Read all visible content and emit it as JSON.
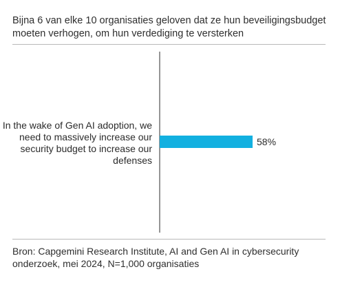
{
  "title": "Bijna 6 van elke 10 organisaties geloven dat ze hun beveiligingsbudget moeten verhogen, om hun verdediging te versterken",
  "source": "Bron: Capgemini Research Institute, AI and Gen AI in cybersecurity onderzoek, mei 2024, N=1,000 organisaties",
  "chart_data": {
    "type": "bar",
    "orientation": "horizontal",
    "categories": [
      "In the wake of Gen AI adoption, we need to massively increase our security budget to increase our defenses"
    ],
    "values": [
      58
    ],
    "value_labels": [
      "58%"
    ],
    "xlim": [
      0,
      100
    ],
    "grid": false,
    "color": "#12b0e0"
  }
}
